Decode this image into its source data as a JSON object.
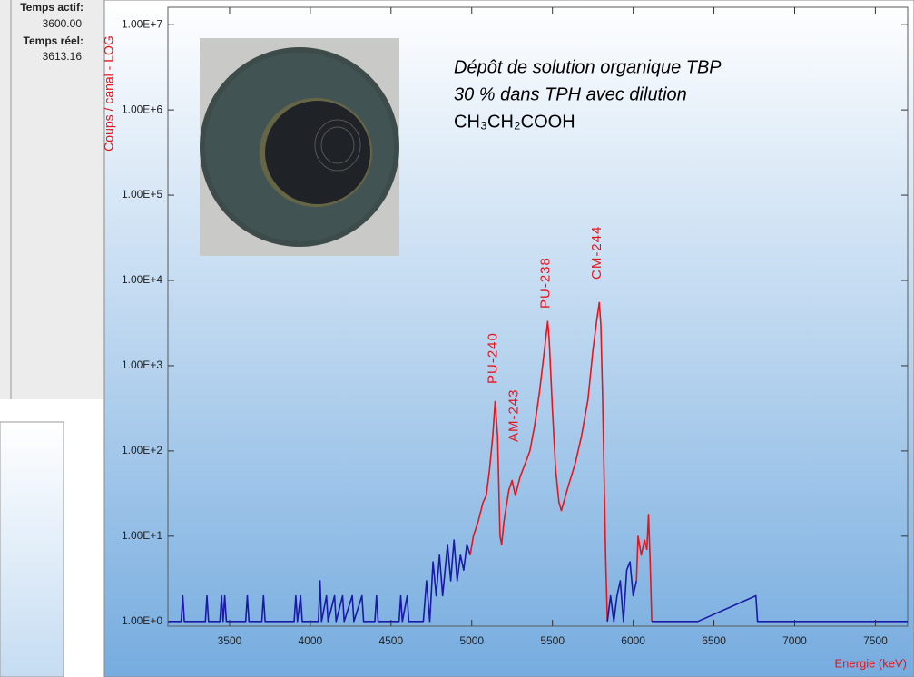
{
  "panel": {
    "active_time_label": "Temps actif:",
    "active_time_value": "3600.00",
    "real_time_label": "Temps réel:",
    "real_time_value": "3613.16"
  },
  "chart_data": {
    "type": "line",
    "log_y": true,
    "y_label": "Coups / canal - LOG",
    "x_label": "Energie (keV)",
    "note": [
      "Dépôt de solution organique TBP",
      "30 % dans TPH avec dilution",
      "CH₃CH₂COOH"
    ],
    "peak_labels": [
      "PU-240",
      "AM-243",
      "PU-238",
      "CM-244"
    ],
    "xlim": [
      3118,
      7700
    ],
    "ylim": [
      0.88,
      16000000
    ],
    "xticks": [
      3500,
      4000,
      4500,
      5000,
      5500,
      6000,
      6500,
      7000,
      7500
    ],
    "yticks": [
      {
        "value": 1,
        "label": "1.00E+0"
      },
      {
        "value": 10,
        "label": "1.00E+1"
      },
      {
        "value": 100,
        "label": "1.00E+2"
      },
      {
        "value": 1000,
        "label": "1.00E+3"
      },
      {
        "value": 10000,
        "label": "1.00E+4"
      },
      {
        "value": 100000,
        "label": "1.00E+5"
      },
      {
        "value": 1000000,
        "label": "1.00E+6"
      },
      {
        "value": 10000000,
        "label": "1.00E+7"
      }
    ],
    "series": [
      {
        "color": "#1a1aa8",
        "x": [
          3120,
          3200,
          3210,
          3220,
          3350,
          3360,
          3370,
          3440,
          3450,
          3460,
          3470,
          3480,
          3600,
          3610,
          3620,
          3700,
          3710,
          3720,
          3900,
          3910,
          3920,
          3940,
          3950,
          4050,
          4060,
          4070,
          4100,
          4110,
          4150,
          4160,
          4200,
          4210,
          4260,
          4270,
          4320,
          4330,
          4400,
          4410,
          4420,
          4550,
          4560,
          4570,
          4600,
          4610,
          4700,
          4720,
          4740,
          4760,
          4780,
          4800,
          4820,
          4850,
          4870,
          4890,
          4910,
          4930,
          4950,
          4970,
          4990
        ],
        "values": [
          1,
          1,
          2,
          1,
          1,
          2,
          1,
          1,
          2,
          1,
          2,
          1,
          1,
          2,
          1,
          1,
          2,
          1,
          1,
          2,
          1,
          2,
          1,
          1,
          3,
          1,
          2,
          1,
          2,
          1,
          2,
          1,
          2,
          1,
          2,
          1,
          1,
          2,
          1,
          1,
          2,
          1,
          2,
          1,
          1,
          3,
          1,
          5,
          2,
          6,
          2,
          8,
          3,
          9,
          3,
          6,
          4,
          8,
          6
        ]
      },
      {
        "color": "#e8141c",
        "x": [
          4990,
          5010,
          5040,
          5070,
          5090,
          5110,
          5130,
          5145,
          5160,
          5175,
          5185,
          5200,
          5230,
          5250,
          5270,
          5300,
          5330,
          5360,
          5390,
          5420,
          5450,
          5470,
          5480,
          5500,
          5520,
          5540,
          5555,
          5570,
          5600,
          5640,
          5680,
          5720,
          5750,
          5775,
          5790,
          5800,
          5810,
          5820,
          5830,
          5840
        ],
        "values": [
          6,
          10,
          15,
          25,
          30,
          60,
          150,
          380,
          150,
          10,
          8,
          15,
          35,
          45,
          30,
          50,
          70,
          100,
          200,
          500,
          1500,
          3300,
          2000,
          300,
          60,
          25,
          20,
          25,
          40,
          70,
          150,
          400,
          1500,
          3500,
          5500,
          3000,
          500,
          50,
          5,
          1
        ]
      },
      {
        "color": "#1a1aa8",
        "x": [
          5840,
          5860,
          5880,
          5900,
          5920,
          5940,
          5960,
          5980,
          6000,
          6020
        ],
        "values": [
          1,
          2,
          1,
          2,
          3,
          1,
          4,
          5,
          2,
          3
        ]
      },
      {
        "color": "#e8141c",
        "x": [
          6020,
          6030,
          6050,
          6070,
          6085,
          6095,
          6105,
          6115
        ],
        "values": [
          3,
          10,
          6,
          9,
          7,
          18,
          5,
          1
        ]
      },
      {
        "color": "#1a1aa8",
        "x": [
          6115,
          6200,
          6400,
          6760,
          6770,
          7000,
          7300,
          7700
        ],
        "values": [
          1,
          1,
          1,
          2,
          1,
          1,
          1,
          1
        ]
      }
    ]
  }
}
